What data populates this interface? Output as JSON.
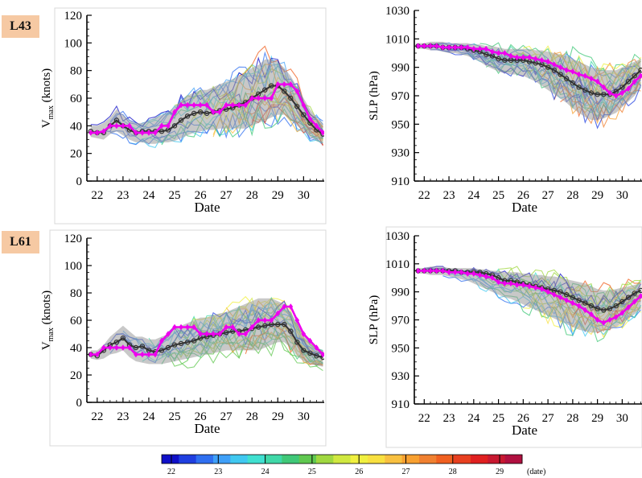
{
  "panel_tags": [
    "L43",
    "L61"
  ],
  "colorbar": {
    "ticks": [
      "22",
      "23",
      "24",
      "25",
      "26",
      "27",
      "28",
      "29"
    ],
    "unit": "(date)",
    "colors": [
      "#1010c8",
      "#1f3fe0",
      "#2f6ff0",
      "#3fa0f8",
      "#40c8f0",
      "#40e0d0",
      "#40d8a8",
      "#40c878",
      "#60c850",
      "#a0d840",
      "#d0e840",
      "#f0f040",
      "#f8e040",
      "#f8c040",
      "#f8a030",
      "#f08030",
      "#f06020",
      "#e84020",
      "#e02020",
      "#c81830",
      "#b01040"
    ]
  },
  "chart_data": [
    {
      "id": "L43-vmax",
      "type": "line",
      "xlabel": "Date",
      "ylabel": "V_max (knots)",
      "ylabel_main": "V",
      "ylabel_sub": "max",
      "ylabel_rest": " (knots)",
      "ylim": [
        0,
        120
      ],
      "xlim": [
        21.6,
        30.8
      ],
      "yticks": [
        "0",
        "20",
        "40",
        "60",
        "80",
        "100",
        "120"
      ],
      "xticks": [
        "22",
        "23",
        "24",
        "25",
        "26",
        "27",
        "28",
        "29",
        "30"
      ],
      "x": [
        21.75,
        22,
        22.25,
        22.5,
        22.75,
        23,
        23.25,
        23.5,
        23.75,
        24,
        24.25,
        24.5,
        24.75,
        25,
        25.25,
        25.5,
        25.75,
        26,
        26.25,
        26.5,
        26.75,
        27,
        27.25,
        27.5,
        27.75,
        28,
        28.25,
        28.5,
        28.75,
        29,
        29.25,
        29.5,
        29.75,
        30,
        30.25,
        30.5,
        30.75
      ],
      "series": [
        {
          "role": "ensemble-mean",
          "color": "#333333",
          "values": [
            36,
            35,
            35,
            40,
            44,
            40,
            37,
            35,
            36,
            36,
            36,
            36,
            37,
            40,
            44,
            47,
            49,
            50,
            49,
            50,
            51,
            52,
            53,
            55,
            57,
            60,
            63,
            66,
            69,
            69,
            65,
            60,
            54,
            48,
            42,
            37,
            34
          ]
        },
        {
          "role": "observed",
          "color": "#ee00ee",
          "values": [
            35,
            35,
            36,
            40,
            40,
            40,
            40,
            35,
            35,
            35,
            35,
            40,
            40,
            50,
            55,
            55,
            55,
            55,
            55,
            50,
            50,
            55,
            55,
            55,
            55,
            60,
            60,
            60,
            60,
            70,
            70,
            70,
            65,
            55,
            45,
            40,
            35
          ]
        }
      ],
      "spread_upper": [
        40,
        40,
        42,
        46,
        52,
        48,
        44,
        42,
        42,
        44,
        46,
        48,
        50,
        54,
        58,
        62,
        64,
        66,
        66,
        68,
        70,
        72,
        74,
        76,
        78,
        82,
        84,
        88,
        88,
        86,
        82,
        76,
        68,
        60,
        52,
        46,
        42
      ],
      "spread_lower": [
        32,
        31,
        30,
        34,
        36,
        33,
        30,
        28,
        28,
        27,
        27,
        28,
        28,
        29,
        31,
        33,
        35,
        36,
        37,
        37,
        38,
        38,
        38,
        38,
        38,
        40,
        42,
        44,
        46,
        48,
        48,
        44,
        40,
        36,
        32,
        29,
        27
      ]
    },
    {
      "id": "L43-slp",
      "type": "line",
      "xlabel": "Date",
      "ylabel": "SLP (hPa)",
      "ylim": [
        910,
        1030
      ],
      "xlim": [
        21.6,
        30.8
      ],
      "yticks": [
        "910",
        "930",
        "950",
        "970",
        "990",
        "1010",
        "1030"
      ],
      "xticks": [
        "22",
        "23",
        "24",
        "25",
        "26",
        "27",
        "28",
        "29",
        "30"
      ],
      "x": [
        21.75,
        22,
        22.25,
        22.5,
        22.75,
        23,
        23.25,
        23.5,
        23.75,
        24,
        24.25,
        24.5,
        24.75,
        25,
        25.25,
        25.5,
        25.75,
        26,
        26.25,
        26.5,
        26.75,
        27,
        27.25,
        27.5,
        27.75,
        28,
        28.25,
        28.5,
        28.75,
        29,
        29.25,
        29.5,
        29.75,
        30,
        30.25,
        30.5,
        30.75
      ],
      "series": [
        {
          "role": "ensemble-mean",
          "color": "#333333",
          "values": [
            1005,
            1005,
            1005,
            1005,
            1004,
            1004,
            1004,
            1004,
            1003,
            1002,
            1001,
            999,
            998,
            996,
            995,
            995,
            995,
            995,
            994,
            993,
            992,
            990,
            988,
            985,
            982,
            979,
            976,
            974,
            972,
            971,
            971,
            971,
            973,
            976,
            980,
            984,
            988
          ]
        },
        {
          "role": "observed",
          "color": "#ee00ee",
          "values": [
            1005,
            1005,
            1005,
            1005,
            1004,
            1004,
            1004,
            1004,
            1004,
            1003,
            1003,
            1003,
            1001,
            1000,
            1000,
            998,
            997,
            997,
            997,
            996,
            995,
            994,
            992,
            990,
            988,
            987,
            985,
            984,
            982,
            980,
            976,
            972,
            970,
            972,
            975,
            980,
            984
          ]
        }
      ],
      "spread_upper": [
        1007,
        1007,
        1008,
        1008,
        1008,
        1007,
        1007,
        1007,
        1007,
        1006,
        1006,
        1005,
        1005,
        1004,
        1003,
        1003,
        1003,
        1003,
        1003,
        1002,
        1002,
        1001,
        1000,
        999,
        998,
        996,
        994,
        992,
        990,
        989,
        988,
        988,
        988,
        990,
        992,
        994,
        996
      ],
      "spread_lower": [
        1003,
        1003,
        1002,
        1002,
        1001,
        1000,
        1000,
        999,
        998,
        996,
        994,
        991,
        989,
        987,
        986,
        985,
        985,
        984,
        982,
        980,
        977,
        974,
        971,
        968,
        965,
        961,
        958,
        955,
        953,
        953,
        954,
        956,
        958,
        962,
        966,
        970,
        976
      ]
    },
    {
      "id": "L61-vmax",
      "type": "line",
      "xlabel": "Date",
      "ylabel": "V_max (knots)",
      "ylabel_main": "V",
      "ylabel_sub": "max",
      "ylabel_rest": " (knots)",
      "ylim": [
        0,
        120
      ],
      "xlim": [
        21.6,
        30.8
      ],
      "yticks": [
        "0",
        "20",
        "40",
        "60",
        "80",
        "100",
        "120"
      ],
      "xticks": [
        "22",
        "23",
        "24",
        "25",
        "26",
        "27",
        "28",
        "29",
        "30"
      ],
      "x": [
        21.75,
        22,
        22.25,
        22.5,
        22.75,
        23,
        23.25,
        23.5,
        23.75,
        24,
        24.25,
        24.5,
        24.75,
        25,
        25.25,
        25.5,
        25.75,
        26,
        26.25,
        26.5,
        26.75,
        27,
        27.25,
        27.5,
        27.75,
        28,
        28.25,
        28.5,
        28.75,
        29,
        29.25,
        29.5,
        29.75,
        30,
        30.25,
        30.5,
        30.75
      ],
      "series": [
        {
          "role": "ensemble-mean",
          "color": "#333333",
          "values": [
            35,
            34,
            38,
            42,
            44,
            47,
            42,
            40,
            41,
            38,
            37,
            38,
            40,
            42,
            43,
            44,
            45,
            47,
            48,
            49,
            50,
            51,
            52,
            52,
            53,
            54,
            55,
            56,
            57,
            57,
            57,
            52,
            44,
            38,
            36,
            34,
            33
          ]
        },
        {
          "role": "observed",
          "color": "#ee00ee",
          "values": [
            35,
            35,
            40,
            40,
            40,
            40,
            40,
            35,
            35,
            35,
            35,
            45,
            50,
            55,
            55,
            55,
            55,
            50,
            50,
            50,
            50,
            55,
            55,
            50,
            50,
            55,
            60,
            60,
            60,
            65,
            70,
            70,
            60,
            50,
            45,
            40,
            35
          ]
        }
      ],
      "spread_upper": [
        38,
        38,
        42,
        48,
        52,
        56,
        52,
        48,
        48,
        46,
        46,
        48,
        50,
        54,
        56,
        58,
        60,
        62,
        62,
        64,
        65,
        66,
        68,
        70,
        72,
        74,
        76,
        76,
        76,
        74,
        72,
        66,
        58,
        50,
        44,
        40,
        38
      ],
      "spread_lower": [
        32,
        31,
        32,
        35,
        36,
        38,
        33,
        30,
        29,
        28,
        28,
        28,
        29,
        30,
        31,
        32,
        33,
        34,
        35,
        36,
        37,
        38,
        38,
        38,
        38,
        38,
        38,
        40,
        42,
        44,
        44,
        40,
        34,
        30,
        28,
        27,
        26
      ]
    },
    {
      "id": "L61-slp",
      "type": "line",
      "xlabel": "Date",
      "ylabel": "SLP (hPa)",
      "ylim": [
        910,
        1030
      ],
      "xlim": [
        21.6,
        30.8
      ],
      "yticks": [
        "910",
        "930",
        "950",
        "970",
        "990",
        "1010",
        "1030"
      ],
      "xticks": [
        "22",
        "23",
        "24",
        "25",
        "26",
        "27",
        "28",
        "29",
        "30"
      ],
      "x": [
        21.75,
        22,
        22.25,
        22.5,
        22.75,
        23,
        23.25,
        23.5,
        23.75,
        24,
        24.25,
        24.5,
        24.75,
        25,
        25.25,
        25.5,
        25.75,
        26,
        26.25,
        26.5,
        26.75,
        27,
        27.25,
        27.5,
        27.75,
        28,
        28.25,
        28.5,
        28.75,
        29,
        29.25,
        29.5,
        29.75,
        30,
        30.25,
        30.5,
        30.75
      ],
      "series": [
        {
          "role": "ensemble-mean",
          "color": "#333333",
          "values": [
            1005,
            1005,
            1005,
            1005,
            1005,
            1005,
            1005,
            1004,
            1004,
            1004,
            1004,
            1003,
            1002,
            1000,
            998,
            998,
            997,
            996,
            995,
            994,
            993,
            992,
            991,
            990,
            988,
            986,
            984,
            982,
            980,
            978,
            977,
            978,
            980,
            983,
            986,
            989,
            991
          ]
        },
        {
          "role": "observed",
          "color": "#ee00ee",
          "values": [
            1005,
            1005,
            1005,
            1005,
            1005,
            1004,
            1004,
            1004,
            1003,
            1003,
            1002,
            1001,
            1000,
            997,
            996,
            996,
            995,
            995,
            994,
            993,
            992,
            990,
            988,
            986,
            984,
            982,
            980,
            977,
            974,
            970,
            968,
            970,
            972,
            975,
            979,
            983,
            987
          ]
        }
      ],
      "spread_upper": [
        1007,
        1007,
        1008,
        1008,
        1008,
        1007,
        1007,
        1007,
        1007,
        1007,
        1006,
        1006,
        1005,
        1005,
        1004,
        1004,
        1004,
        1003,
        1003,
        1002,
        1002,
        1001,
        1001,
        1000,
        999,
        998,
        997,
        996,
        994,
        992,
        991,
        991,
        992,
        993,
        994,
        995,
        996
      ],
      "spread_lower": [
        1003,
        1003,
        1002,
        1002,
        1002,
        1001,
        1000,
        999,
        998,
        996,
        994,
        992,
        990,
        988,
        986,
        985,
        983,
        981,
        979,
        977,
        975,
        973,
        971,
        969,
        967,
        965,
        963,
        962,
        961,
        961,
        962,
        963,
        965,
        968,
        971,
        974,
        978
      ]
    }
  ]
}
